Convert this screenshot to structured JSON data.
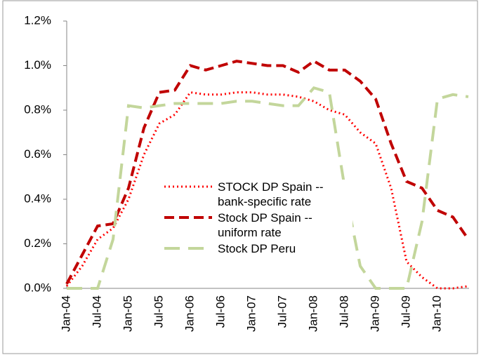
{
  "chart_data": {
    "type": "line",
    "categories": [
      "Jan-04",
      null,
      "Jul-04",
      null,
      "Jan-05",
      null,
      "Jul-05",
      null,
      "Jan-06",
      null,
      "Jul-06",
      null,
      "Jan-07",
      null,
      "Jul-07",
      null,
      "Jan-08",
      null,
      "Jul-08",
      null,
      "Jan-09",
      null,
      "Jul-09",
      null,
      "Jan-10",
      null,
      null
    ],
    "series": [
      {
        "name": "STOCK DP Spain -- bank-specific rate",
        "color": "#ff0000",
        "dash": "dotted",
        "values": [
          0.01,
          0.1,
          0.22,
          0.27,
          0.4,
          0.6,
          0.74,
          0.78,
          0.88,
          0.87,
          0.87,
          0.88,
          0.88,
          0.87,
          0.87,
          0.86,
          0.84,
          0.8,
          0.78,
          0.7,
          0.65,
          0.45,
          0.12,
          0.05,
          0.0,
          0.0,
          0.01
        ]
      },
      {
        "name": "Stock DP Spain -- uniform rate",
        "color": "#c00000",
        "dash": "dashed",
        "values": [
          0.02,
          0.15,
          0.28,
          0.29,
          0.45,
          0.72,
          0.88,
          0.89,
          1.0,
          0.98,
          1.0,
          1.02,
          1.01,
          1.0,
          1.0,
          0.97,
          1.02,
          0.98,
          0.98,
          0.93,
          0.85,
          0.65,
          0.48,
          0.45,
          0.35,
          0.32,
          0.22
        ]
      },
      {
        "name": "Stock DP Peru",
        "color": "#c3d69b",
        "dash": "long-dashed",
        "values": [
          0,
          0,
          0,
          0.22,
          0.82,
          0.81,
          0.82,
          0.83,
          0.83,
          0.83,
          0.83,
          0.84,
          0.84,
          0.83,
          0.82,
          0.82,
          0.9,
          0.88,
          0.45,
          0.1,
          0.0,
          0.0,
          0.0,
          0.3,
          0.85,
          0.87,
          0.86
        ]
      }
    ],
    "ylim": [
      0,
      1.2
    ],
    "yticks": [
      {
        "value": 0,
        "label": "0.0%"
      },
      {
        "value": 0.2,
        "label": "0.2%"
      },
      {
        "value": 0.4,
        "label": "0.4%"
      },
      {
        "value": 0.6,
        "label": "0.6%"
      },
      {
        "value": 0.8,
        "label": "0.8%"
      },
      {
        "value": 1.0,
        "label": "1.0%"
      },
      {
        "value": 1.2,
        "label": "1.2%"
      }
    ],
    "grid": false
  }
}
